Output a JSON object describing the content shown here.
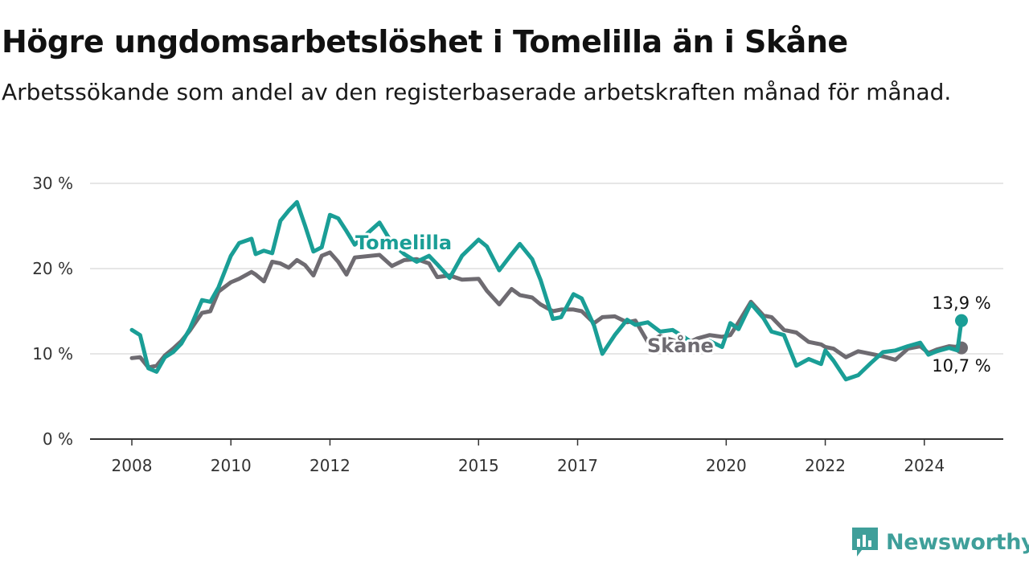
{
  "title": "Högre ungdomsarbetslöshet i Tomelilla än i Skåne",
  "subtitle": "Arbetssökande som andel av den registerbaserade arbetskraften månad för månad.",
  "brand": {
    "name": "Newsworthy",
    "icon": "newsworthy-logo-icon",
    "color": "#3f9f9a"
  },
  "chart_data": {
    "type": "line",
    "title": "Högre ungdomsarbetslöshet i Tomelilla än i Skåne",
    "xlabel": "",
    "ylabel": "",
    "ylim": [
      0,
      30
    ],
    "xlim": [
      "2008-01",
      "2025-01"
    ],
    "y_ticks": [
      0,
      10,
      20,
      30
    ],
    "y_tick_labels": [
      "0 %",
      "10 %",
      "20 %",
      "30 %"
    ],
    "x_ticks": [
      "2008-01",
      "2010-01",
      "2012-01",
      "2015-01",
      "2017-01",
      "2020-01",
      "2022-01",
      "2024-01"
    ],
    "x_tick_labels": [
      "2008",
      "2010",
      "2012",
      "2015",
      "2017",
      "2020",
      "2022",
      "2024"
    ],
    "grid": "horizontal",
    "legend": "inline labels",
    "series": [
      {
        "name": "Tomelilla",
        "color": "#1a9e96",
        "end_label": "13,9 %",
        "points": [
          [
            "2008-01",
            12.8
          ],
          [
            "2008-03",
            12.2
          ],
          [
            "2008-05",
            8.3
          ],
          [
            "2008-07",
            7.9
          ],
          [
            "2008-09",
            9.6
          ],
          [
            "2008-11",
            10.2
          ],
          [
            "2009-01",
            11.2
          ],
          [
            "2009-03",
            12.9
          ],
          [
            "2009-06",
            16.3
          ],
          [
            "2009-08",
            16.1
          ],
          [
            "2009-10",
            17.8
          ],
          [
            "2010-01",
            21.5
          ],
          [
            "2010-03",
            23.0
          ],
          [
            "2010-06",
            23.5
          ],
          [
            "2010-07",
            21.7
          ],
          [
            "2010-09",
            22.1
          ],
          [
            "2010-11",
            21.8
          ],
          [
            "2011-01",
            25.6
          ],
          [
            "2011-03",
            26.8
          ],
          [
            "2011-05",
            27.8
          ],
          [
            "2011-07",
            25.0
          ],
          [
            "2011-09",
            22.0
          ],
          [
            "2011-11",
            22.5
          ],
          [
            "2012-01",
            26.3
          ],
          [
            "2012-03",
            25.9
          ],
          [
            "2012-05",
            24.4
          ],
          [
            "2012-07",
            22.8
          ],
          [
            "2013-01",
            25.4
          ],
          [
            "2013-04",
            23.0
          ],
          [
            "2013-07",
            21.7
          ],
          [
            "2013-10",
            20.8
          ],
          [
            "2014-01",
            21.5
          ],
          [
            "2014-03",
            20.5
          ],
          [
            "2014-06",
            18.9
          ],
          [
            "2014-09",
            21.5
          ],
          [
            "2015-01",
            23.4
          ],
          [
            "2015-03",
            22.6
          ],
          [
            "2015-06",
            19.8
          ],
          [
            "2015-09",
            21.7
          ],
          [
            "2015-11",
            22.9
          ],
          [
            "2016-02",
            21.1
          ],
          [
            "2016-04",
            18.7
          ],
          [
            "2016-07",
            14.1
          ],
          [
            "2016-09",
            14.3
          ],
          [
            "2016-12",
            17.0
          ],
          [
            "2017-02",
            16.5
          ],
          [
            "2017-05",
            13.3
          ],
          [
            "2017-07",
            10.0
          ],
          [
            "2017-10",
            12.2
          ],
          [
            "2018-01",
            14.0
          ],
          [
            "2018-03",
            13.4
          ],
          [
            "2018-06",
            13.7
          ],
          [
            "2018-09",
            12.6
          ],
          [
            "2018-12",
            12.8
          ],
          [
            "2019-03",
            11.9
          ],
          [
            "2019-06",
            10.9
          ],
          [
            "2019-09",
            11.5
          ],
          [
            "2019-12",
            10.8
          ],
          [
            "2020-02",
            13.6
          ],
          [
            "2020-04",
            12.9
          ],
          [
            "2020-07",
            15.9
          ],
          [
            "2020-10",
            14.2
          ],
          [
            "2020-12",
            12.6
          ],
          [
            "2021-03",
            12.2
          ],
          [
            "2021-06",
            8.6
          ],
          [
            "2021-09",
            9.4
          ],
          [
            "2021-12",
            8.8
          ],
          [
            "2022-01",
            10.4
          ],
          [
            "2022-03",
            9.2
          ],
          [
            "2022-06",
            7.0
          ],
          [
            "2022-09",
            7.5
          ],
          [
            "2022-12",
            8.9
          ],
          [
            "2023-03",
            10.2
          ],
          [
            "2023-06",
            10.4
          ],
          [
            "2023-09",
            10.9
          ],
          [
            "2023-12",
            11.3
          ],
          [
            "2024-02",
            9.9
          ],
          [
            "2024-04",
            10.3
          ],
          [
            "2024-07",
            10.7
          ],
          [
            "2024-09",
            10.4
          ],
          [
            "2024-10",
            13.9
          ]
        ]
      },
      {
        "name": "Skåne",
        "color": "#6e6b71",
        "end_label": "10,7 %",
        "points": [
          [
            "2008-01",
            9.5
          ],
          [
            "2008-03",
            9.6
          ],
          [
            "2008-05",
            8.4
          ],
          [
            "2008-07",
            8.6
          ],
          [
            "2008-09",
            9.8
          ],
          [
            "2008-11",
            10.6
          ],
          [
            "2009-01",
            11.5
          ],
          [
            "2009-03",
            12.7
          ],
          [
            "2009-06",
            14.8
          ],
          [
            "2009-08",
            15.0
          ],
          [
            "2009-10",
            17.3
          ],
          [
            "2010-01",
            18.4
          ],
          [
            "2010-03",
            18.8
          ],
          [
            "2010-06",
            19.6
          ],
          [
            "2010-07",
            19.3
          ],
          [
            "2010-09",
            18.5
          ],
          [
            "2010-11",
            20.8
          ],
          [
            "2011-01",
            20.6
          ],
          [
            "2011-03",
            20.1
          ],
          [
            "2011-05",
            21.0
          ],
          [
            "2011-07",
            20.4
          ],
          [
            "2011-09",
            19.2
          ],
          [
            "2011-11",
            21.5
          ],
          [
            "2012-01",
            21.9
          ],
          [
            "2012-03",
            20.8
          ],
          [
            "2012-05",
            19.3
          ],
          [
            "2012-07",
            21.3
          ],
          [
            "2013-01",
            21.6
          ],
          [
            "2013-04",
            20.3
          ],
          [
            "2013-07",
            21.0
          ],
          [
            "2013-10",
            21.1
          ],
          [
            "2014-01",
            20.6
          ],
          [
            "2014-03",
            19.0
          ],
          [
            "2014-06",
            19.2
          ],
          [
            "2014-09",
            18.7
          ],
          [
            "2015-01",
            18.8
          ],
          [
            "2015-03",
            17.4
          ],
          [
            "2015-06",
            15.8
          ],
          [
            "2015-09",
            17.6
          ],
          [
            "2015-11",
            16.9
          ],
          [
            "2016-02",
            16.6
          ],
          [
            "2016-04",
            15.8
          ],
          [
            "2016-07",
            15.0
          ],
          [
            "2016-09",
            15.2
          ],
          [
            "2016-12",
            15.2
          ],
          [
            "2017-02",
            15.0
          ],
          [
            "2017-05",
            13.6
          ],
          [
            "2017-07",
            14.3
          ],
          [
            "2017-10",
            14.4
          ],
          [
            "2018-01",
            13.7
          ],
          [
            "2018-03",
            13.9
          ],
          [
            "2018-06",
            11.4
          ],
          [
            "2018-09",
            12.1
          ],
          [
            "2018-12",
            11.6
          ],
          [
            "2019-03",
            11.1
          ],
          [
            "2019-06",
            11.8
          ],
          [
            "2019-09",
            12.2
          ],
          [
            "2019-12",
            12.0
          ],
          [
            "2020-02",
            12.2
          ],
          [
            "2020-04",
            13.7
          ],
          [
            "2020-07",
            16.1
          ],
          [
            "2020-10",
            14.5
          ],
          [
            "2020-12",
            14.3
          ],
          [
            "2021-03",
            12.8
          ],
          [
            "2021-06",
            12.5
          ],
          [
            "2021-09",
            11.4
          ],
          [
            "2021-12",
            11.1
          ],
          [
            "2022-01",
            10.8
          ],
          [
            "2022-03",
            10.6
          ],
          [
            "2022-06",
            9.6
          ],
          [
            "2022-09",
            10.3
          ],
          [
            "2022-12",
            10.0
          ],
          [
            "2023-03",
            9.7
          ],
          [
            "2023-06",
            9.3
          ],
          [
            "2023-09",
            10.6
          ],
          [
            "2023-12",
            10.9
          ],
          [
            "2024-02",
            10.1
          ],
          [
            "2024-04",
            10.5
          ],
          [
            "2024-07",
            10.9
          ],
          [
            "2024-09",
            10.8
          ],
          [
            "2024-10",
            10.7
          ]
        ]
      }
    ]
  }
}
